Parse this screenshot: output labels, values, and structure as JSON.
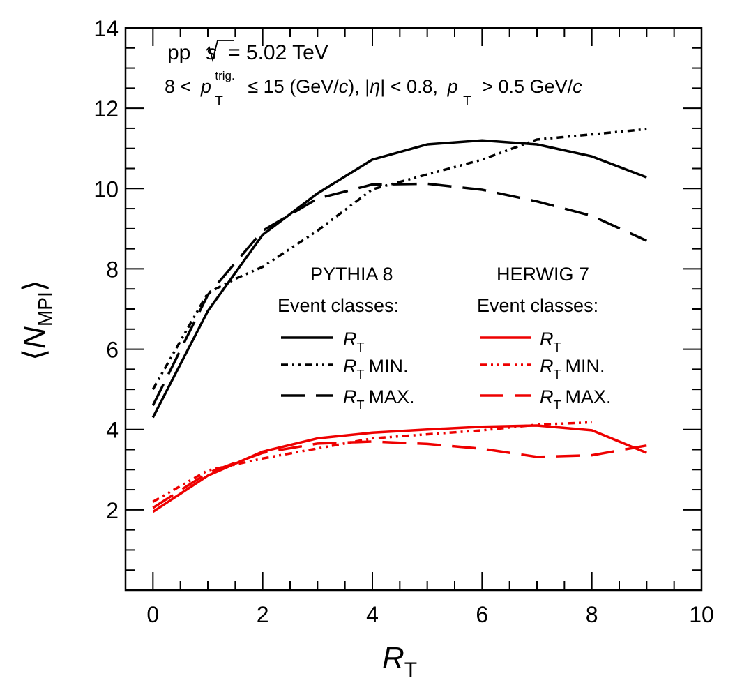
{
  "chart_data": {
    "type": "line",
    "xlabel": "R",
    "xlabel_sub": "T",
    "ylabel": "N",
    "ylabel_sub": "MPI",
    "xlim": [
      -0.5,
      10
    ],
    "ylim": [
      0,
      14
    ],
    "grid": false,
    "x_ticks": [
      0,
      2,
      4,
      6,
      8,
      10
    ],
    "y_ticks": [
      2,
      4,
      6,
      8,
      10,
      12,
      14
    ],
    "annotations": {
      "line1_pp": "pp",
      "line1_sqrt_s": "s",
      "line1_energy": "= 5.02 TeV",
      "line2_a": "8 <",
      "line2_p": "p",
      "line2_p_sup": "trig.",
      "line2_p_sub": "T",
      "line2_b": "≤ 15 (GeV/",
      "line2_c1": "c",
      "line2_d": "), |",
      "line2_eta": "η",
      "line2_e": "| < 0.8,",
      "line2_p2": "p",
      "line2_p2_sub": "T",
      "line2_f": "> 0.5 GeV/",
      "line2_c2": "c"
    },
    "legend": {
      "placement": "center-right",
      "groups": [
        {
          "title": "PYTHIA 8",
          "subtitle": "Event classes:",
          "color": "#000000"
        },
        {
          "title": "HERWIG 7",
          "subtitle": "Event classes:",
          "color": "#ee0000"
        }
      ],
      "entries": [
        {
          "main": "R",
          "sub": "T",
          "suffix": "",
          "style": "solid"
        },
        {
          "main": "R",
          "sub": "T",
          "suffix": "MIN.",
          "style": "dashdotdot"
        },
        {
          "main": "R",
          "sub": "T",
          "suffix": "MAX.",
          "style": "dashed"
        }
      ]
    },
    "series": [
      {
        "group": "PYTHIA 8",
        "class": "R_T",
        "color": "#000000",
        "style": "solid",
        "x": [
          0,
          1,
          2,
          3,
          4,
          5,
          6,
          7,
          8,
          9
        ],
        "values": [
          4.3,
          6.95,
          8.85,
          9.88,
          10.72,
          11.1,
          11.2,
          11.1,
          10.8,
          10.28
        ]
      },
      {
        "group": "PYTHIA 8",
        "class": "R_T MIN.",
        "color": "#000000",
        "style": "dashdotdot",
        "x": [
          0,
          1,
          1.5,
          2,
          3,
          4,
          5,
          6,
          7,
          8,
          9
        ],
        "values": [
          5.0,
          7.4,
          7.75,
          8.05,
          8.95,
          9.98,
          10.35,
          10.72,
          11.22,
          11.35,
          11.48
        ]
      },
      {
        "group": "PYTHIA 8",
        "class": "R_T MAX.",
        "color": "#000000",
        "style": "dashed",
        "x": [
          0,
          1,
          2,
          3,
          4,
          5,
          6,
          7,
          8,
          9
        ],
        "values": [
          4.6,
          7.35,
          8.95,
          9.75,
          10.1,
          10.12,
          9.97,
          9.68,
          9.32,
          8.7
        ]
      },
      {
        "group": "HERWIG 7",
        "class": "R_T",
        "color": "#ee0000",
        "style": "solid",
        "x": [
          0,
          1,
          2,
          3,
          4,
          5,
          6,
          7,
          8,
          9
        ],
        "values": [
          1.95,
          2.85,
          3.45,
          3.78,
          3.92,
          4.0,
          4.07,
          4.1,
          3.98,
          3.42
        ]
      },
      {
        "group": "HERWIG 7",
        "class": "R_T MIN.",
        "color": "#ee0000",
        "style": "dashdotdot",
        "x": [
          0,
          1,
          2,
          3,
          4,
          5,
          6,
          7,
          8
        ],
        "values": [
          2.2,
          2.98,
          3.28,
          3.53,
          3.78,
          3.88,
          3.98,
          4.12,
          4.18
        ]
      },
      {
        "group": "HERWIG 7",
        "class": "R_T MAX.",
        "color": "#ee0000",
        "style": "dashed",
        "x": [
          0,
          1,
          2,
          3,
          4,
          5,
          6,
          7,
          8,
          9
        ],
        "values": [
          2.05,
          2.92,
          3.42,
          3.65,
          3.7,
          3.64,
          3.52,
          3.32,
          3.36,
          3.6
        ]
      }
    ]
  }
}
